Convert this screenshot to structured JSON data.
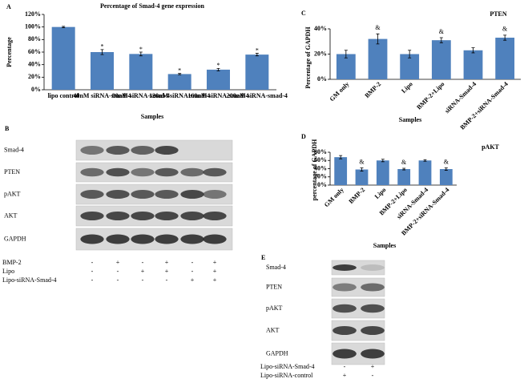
{
  "chart_data": [
    {
      "type": "bar",
      "panel": "A",
      "title": "Percentage of Smad-4 gene expression",
      "y_label": "Percentage",
      "x_label": "Samples",
      "categories": [
        "lipo control",
        "40nM siRNA-smad-4",
        "80nM siRNA-smad-4",
        "120nM siRNA-smad-4",
        "160nM siRNA-smad-4",
        "200nM siRNA-smad-4"
      ],
      "values": [
        100,
        60,
        57,
        25,
        32,
        56
      ],
      "errors": [
        1,
        4,
        3,
        1,
        2,
        2
      ],
      "bar_labels": [
        null,
        "*",
        "*",
        "*",
        "*",
        "*"
      ],
      "color": "#4f81bd",
      "ylim": [
        0,
        120
      ],
      "yticks": [
        {
          "value": 0,
          "label": "0%"
        },
        {
          "value": 20,
          "label": "20%"
        },
        {
          "value": 40,
          "label": "40%"
        },
        {
          "value": 60,
          "label": "60%"
        },
        {
          "value": 80,
          "label": "80%"
        },
        {
          "value": 100,
          "label": "100%"
        },
        {
          "value": 120,
          "label": "120%"
        }
      ]
    },
    {
      "type": "bar",
      "panel": "C",
      "title": "PTEN",
      "y_label": "Percentage of GAPDH",
      "x_label": "Samples",
      "categories": [
        "GM only",
        "BMP-2",
        "Lipo",
        "BMP-2+Lipo",
        "siRNA-Smad-4",
        "BMP-2+siRNA-Smad-4"
      ],
      "values": [
        20,
        32,
        20,
        31,
        23,
        33
      ],
      "errors": [
        3,
        4,
        3,
        2,
        2,
        2
      ],
      "bar_labels": [
        null,
        "&",
        null,
        "&",
        null,
        "&"
      ],
      "color": "#4f81bd",
      "ylim": [
        0,
        40
      ],
      "yticks": [
        {
          "value": 0,
          "label": "0%"
        },
        {
          "value": 20,
          "label": "20%"
        },
        {
          "value": 40,
          "label": "40%"
        }
      ]
    },
    {
      "type": "bar",
      "panel": "D",
      "title": "pAKT",
      "y_label": "percentage of GAPDH",
      "x_label": "Samples",
      "categories": [
        "GM only",
        "BMP-2",
        "Lipo",
        "BMP-2+Lipo",
        "siRNA-Smad-4",
        "BMP-2+siRNA-Smad-4"
      ],
      "values": [
        68,
        38,
        60,
        39,
        60,
        39
      ],
      "errors": [
        4,
        4,
        3,
        2,
        2,
        3
      ],
      "bar_labels": [
        null,
        "&",
        null,
        "&",
        null,
        "&"
      ],
      "color": "#4f81bd",
      "ylim": [
        0,
        80
      ],
      "yticks": [
        {
          "value": 0,
          "label": "0%"
        },
        {
          "value": 20,
          "label": "20%"
        },
        {
          "value": 40,
          "label": "40%"
        },
        {
          "value": 60,
          "label": "60%"
        },
        {
          "value": 80,
          "label": "80%"
        }
      ]
    }
  ],
  "blots": [
    {
      "panel": "B",
      "rows": [
        "Smad-4",
        "PTEN",
        "pAKT",
        "AKT",
        "GAPDH"
      ],
      "conditions": [
        {
          "name": "BMP-2",
          "signs": [
            "-",
            "+",
            "-",
            "+",
            "-",
            "+"
          ]
        },
        {
          "name": "Lipo",
          "signs": [
            "-",
            "-",
            "+",
            "+",
            "-",
            "+"
          ]
        },
        {
          "name": "Lipo-siRNA-Smad-4",
          "signs": [
            "-",
            "-",
            "-",
            "-",
            "+",
            "+"
          ]
        }
      ]
    },
    {
      "panel": "E",
      "rows": [
        "Smad-4",
        "PTEN",
        "pAKT",
        "AKT",
        "GAPDH"
      ],
      "conditions": [
        {
          "name": "Lipo-siRNA-Smad-4",
          "signs": [
            "-",
            "+"
          ]
        },
        {
          "name": "Lipo-siRNA-control",
          "signs": [
            "+",
            "-"
          ]
        }
      ]
    }
  ]
}
